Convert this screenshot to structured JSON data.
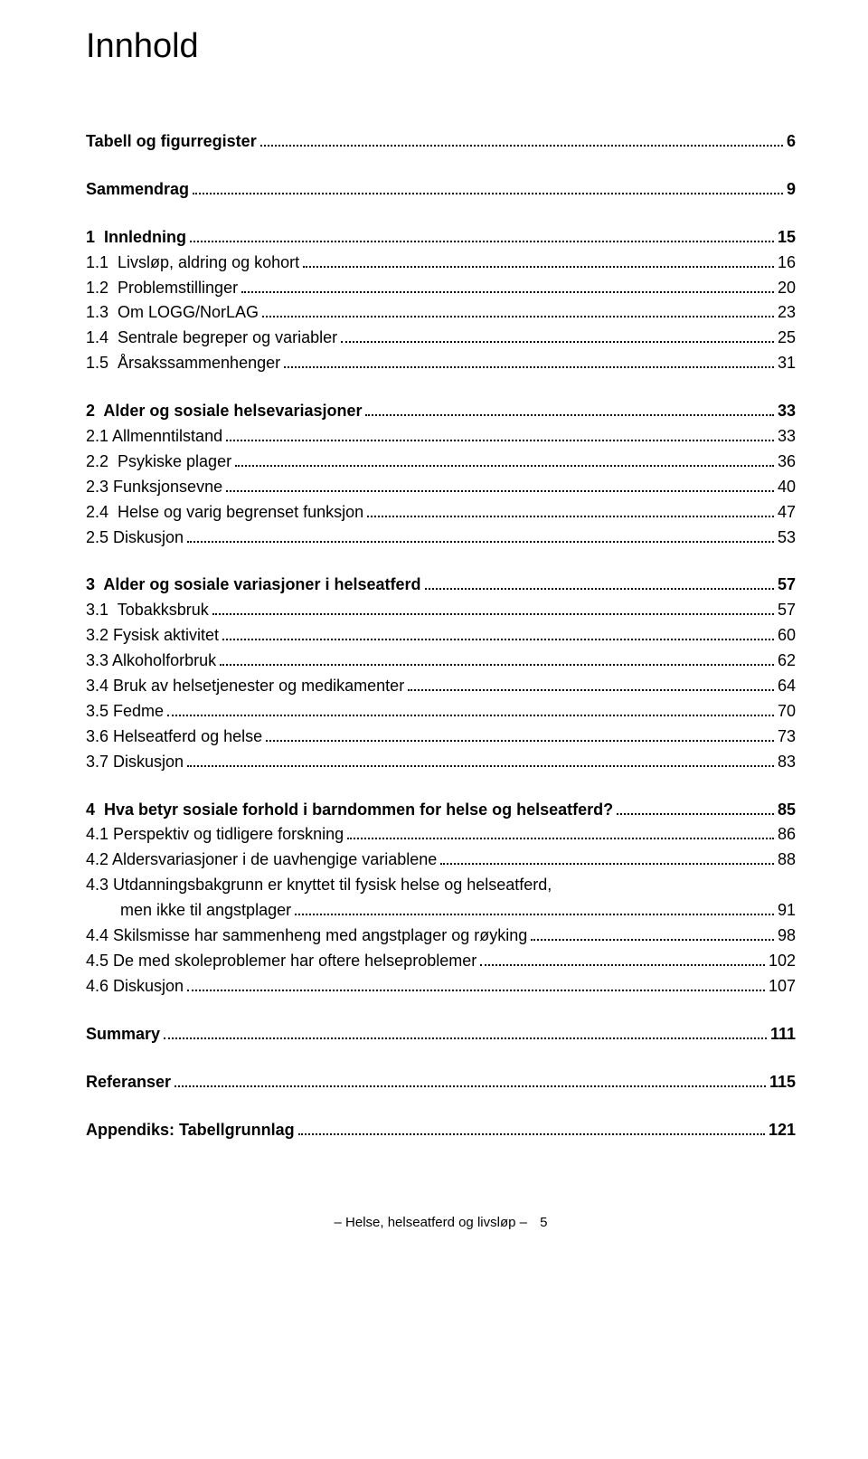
{
  "title": "Innhold",
  "footer": {
    "text": "– Helse, helseatferd og livsløp –",
    "page": "5"
  },
  "toc": [
    {
      "type": "block",
      "items": [
        {
          "label": "Tabell og figurregister",
          "page": "6",
          "bold": true
        }
      ]
    },
    {
      "type": "block",
      "items": [
        {
          "label": "Sammendrag",
          "page": "9",
          "bold": true
        }
      ]
    },
    {
      "type": "block",
      "items": [
        {
          "label": "1  Innledning",
          "page": "15",
          "bold": true
        },
        {
          "label": "1.1  Livsløp, aldring og kohort",
          "page": "16"
        },
        {
          "label": "1.2  Problemstillinger",
          "page": "20"
        },
        {
          "label": "1.3  Om LOGG/NorLAG",
          "page": "23"
        },
        {
          "label": "1.4  Sentrale begreper og variabler",
          "page": "25"
        },
        {
          "label": "1.5  Årsakssammenhenger",
          "page": "31"
        }
      ]
    },
    {
      "type": "block",
      "items": [
        {
          "label": "2  Alder og sosiale helsevariasjoner",
          "page": "33",
          "bold": true
        },
        {
          "label": "2.1 Allmenntilstand",
          "page": "33"
        },
        {
          "label": "2.2  Psykiske plager",
          "page": "36"
        },
        {
          "label": "2.3 Funksjonsevne",
          "page": "40"
        },
        {
          "label": "2.4  Helse og varig begrenset funksjon",
          "page": "47"
        },
        {
          "label": "2.5 Diskusjon",
          "page": "53"
        }
      ]
    },
    {
      "type": "block",
      "items": [
        {
          "label": "3  Alder og sosiale variasjoner i helseatferd",
          "page": "57",
          "bold": true
        },
        {
          "label": "3.1  Tobakksbruk",
          "page": "57"
        },
        {
          "label": "3.2 Fysisk aktivitet",
          "page": "60"
        },
        {
          "label": "3.3 Alkoholforbruk",
          "page": "62"
        },
        {
          "label": "3.4 Bruk av helsetjenester og medikamenter",
          "page": "64"
        },
        {
          "label": "3.5 Fedme",
          "page": "70"
        },
        {
          "label": "3.6 Helseatferd og helse",
          "page": "73"
        },
        {
          "label": "3.7 Diskusjon",
          "page": "83"
        }
      ]
    },
    {
      "type": "block",
      "items": [
        {
          "label": "4  Hva betyr sosiale forhold i barndommen for helse og helseatferd?",
          "page": "85",
          "bold": true
        },
        {
          "label": "4.1 Perspektiv og tidligere forskning",
          "page": "86"
        },
        {
          "label": "4.2 Aldersvariasjoner i de uavhengige variablene",
          "page": "88"
        },
        {
          "label": "4.3 Utdanningsbakgrunn er knyttet til fysisk helse og helseatferd,",
          "cont": "men ikke til angstplager",
          "page": "91"
        },
        {
          "label": "4.4 Skilsmisse har sammenheng med angstplager og røyking",
          "page": "98"
        },
        {
          "label": "4.5 De med skoleproblemer har oftere helseproblemer",
          "page": "102"
        },
        {
          "label": "4.6 Diskusjon",
          "page": "107"
        }
      ]
    },
    {
      "type": "block",
      "items": [
        {
          "label": "Summary",
          "page": "111",
          "bold": true
        }
      ]
    },
    {
      "type": "block",
      "items": [
        {
          "label": "Referanser",
          "page": "115",
          "bold": true
        }
      ]
    },
    {
      "type": "block",
      "items": [
        {
          "label": "Appendiks: Tabellgrunnlag",
          "page": "121",
          "bold": true
        }
      ]
    }
  ]
}
